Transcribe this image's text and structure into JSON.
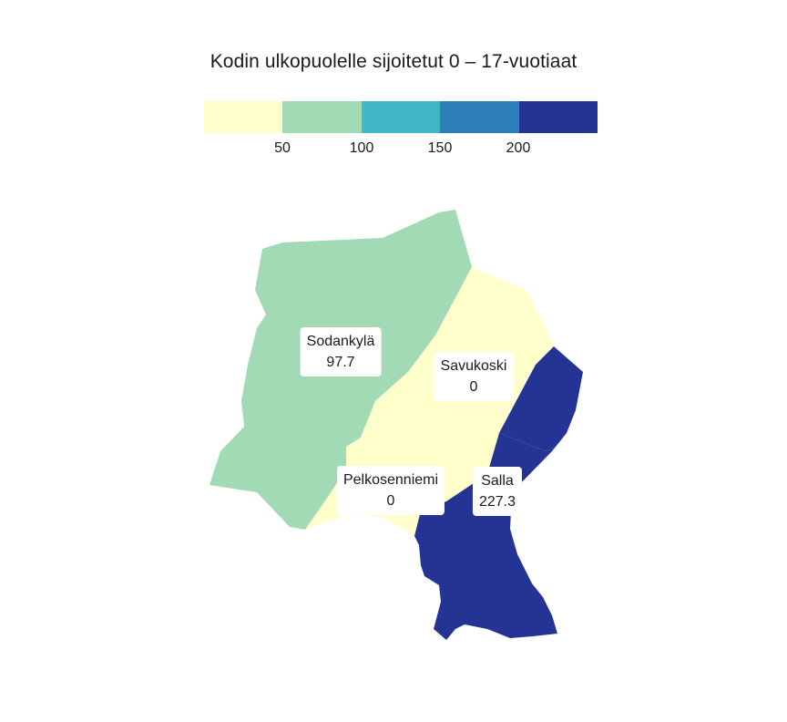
{
  "title": "Kodin ulkopuolelle sijoitetut 0 – 17-vuotiaat",
  "legend": {
    "colors": [
      "#ffffcc",
      "#a1dab4",
      "#41b6c4",
      "#2c7fb8",
      "#253494"
    ],
    "ticks": [
      "50",
      "100",
      "150",
      "200"
    ]
  },
  "regions": [
    {
      "name": "Sodankylä",
      "value": "97.7",
      "color": "#a1dab4"
    },
    {
      "name": "Savukoski",
      "value": "0",
      "color": "#ffffcc"
    },
    {
      "name": "Pelkosenniemi",
      "value": "0",
      "color": "#ffffcc"
    },
    {
      "name": "Salla",
      "value": "227.3",
      "color": "#253494"
    }
  ]
}
